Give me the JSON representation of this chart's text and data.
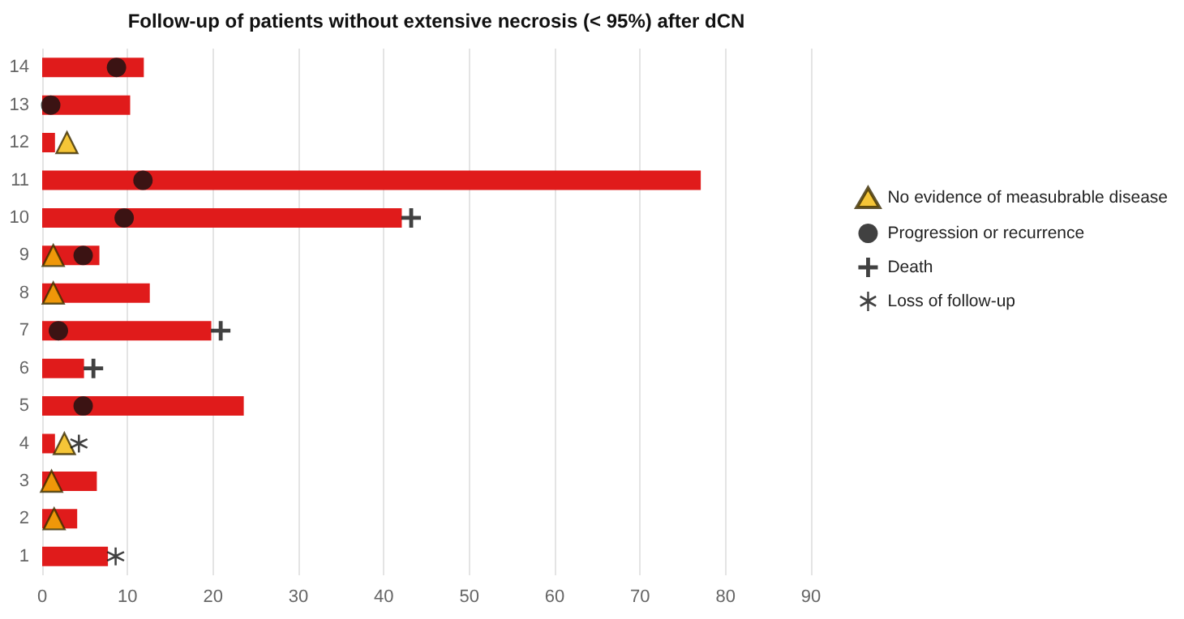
{
  "chart_data": {
    "type": "bar",
    "orientation": "horizontal",
    "title": "Follow-up of patients without extensive necrosis (< 95%) after dCN",
    "categories": [
      "14",
      "13",
      "12",
      "11",
      "10",
      "9",
      "8",
      "7",
      "6",
      "5",
      "4",
      "3",
      "2",
      "1"
    ],
    "series": [
      {
        "color": "#e01b1b",
        "values": [
          11.9,
          10.3,
          1.5,
          77.1,
          42.1,
          6.7,
          12.6,
          19.8,
          4.9,
          23.6,
          1.5,
          6.4,
          4.1,
          7.7
        ]
      },
      {
        "type": "scatter",
        "name": "No evidence of measubrable disease",
        "marker": "triangle",
        "color": "#f2b705",
        "values": [
          null,
          null,
          2.9,
          null,
          null,
          1.3,
          1.3,
          null,
          null,
          null,
          2.6,
          1.1,
          1.4,
          null
        ]
      },
      {
        "type": "scatter",
        "name": "Progression or recurrence",
        "marker": "circle",
        "color": "#111111",
        "values": [
          8.7,
          1.0,
          null,
          11.8,
          9.6,
          4.8,
          null,
          1.9,
          null,
          4.8,
          null,
          null,
          null,
          null
        ]
      },
      {
        "type": "scatter",
        "name": "Death",
        "marker": "cross",
        "color": "#111111",
        "values": [
          null,
          null,
          null,
          null,
          43.2,
          null,
          null,
          20.9,
          6.0,
          null,
          null,
          null,
          null,
          null
        ]
      },
      {
        "type": "scatter",
        "name": "Loss of follow-up",
        "marker": "star",
        "color": "#111111",
        "values": [
          null,
          null,
          null,
          null,
          null,
          null,
          null,
          null,
          null,
          null,
          4.3,
          null,
          null,
          8.6
        ]
      }
    ],
    "xlim": [
      0,
      90
    ],
    "xticks": [
      0,
      10,
      20,
      30,
      40,
      50,
      60,
      70,
      80,
      90
    ],
    "grid": "x",
    "legend": "right"
  }
}
